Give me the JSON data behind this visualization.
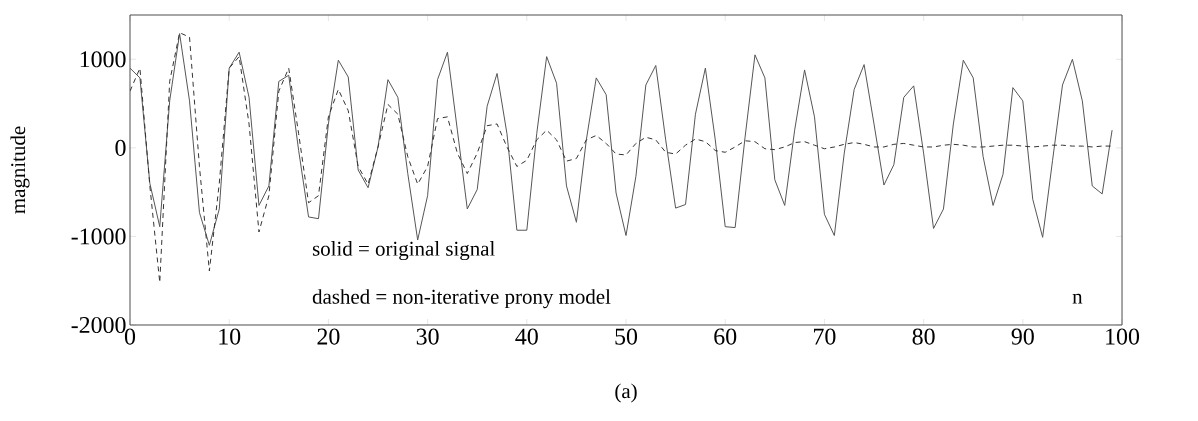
{
  "chart_data": {
    "type": "line",
    "xlabel": "n",
    "ylabel": "magnitude",
    "annotations": [
      "solid  = original signal",
      "dashed = non-iterative prony model",
      "(a)"
    ],
    "x": [
      0,
      1,
      2,
      3,
      4,
      5,
      6,
      7,
      8,
      9,
      10,
      11,
      12,
      13,
      14,
      15,
      16,
      17,
      18,
      19,
      20,
      21,
      22,
      23,
      24,
      25,
      26,
      27,
      28,
      29,
      30,
      31,
      32,
      33,
      34,
      35,
      36,
      37,
      38,
      39,
      40,
      41,
      42,
      43,
      44,
      45,
      46,
      47,
      48,
      49,
      50,
      51,
      52,
      53,
      54,
      55,
      56,
      57,
      58,
      59,
      60,
      61,
      62,
      63,
      64,
      65,
      66,
      67,
      68,
      69,
      70,
      71,
      72,
      73,
      74,
      75,
      76,
      77,
      78,
      79,
      80,
      81,
      82,
      83,
      84,
      85,
      86,
      87,
      88,
      89,
      90,
      91,
      92,
      93,
      94,
      95,
      96,
      97,
      98,
      99
    ],
    "series": [
      {
        "color": "#555555",
        "line_style": "solid",
        "values": [
          900,
          790,
          -400,
          -890,
          530,
          1290,
          530,
          -730,
          -1100,
          -690,
          900,
          1080,
          570,
          -650,
          -430,
          750,
          820,
          -30,
          -780,
          -800,
          270,
          990,
          800,
          -250,
          -450,
          10,
          770,
          570,
          -290,
          -1040,
          -540,
          770,
          1080,
          200,
          -690,
          -470,
          470,
          840,
          160,
          -930,
          -930,
          160,
          1030,
          730,
          -430,
          -840,
          90,
          790,
          600,
          -510,
          -990,
          -320,
          710,
          930,
          90,
          -680,
          -640,
          380,
          900,
          90,
          -890,
          -900,
          120,
          1050,
          790,
          -360,
          -650,
          200,
          880,
          350,
          -750,
          -990,
          -60,
          660,
          940,
          270,
          -420,
          -190,
          570,
          700,
          -60,
          -910,
          -690,
          270,
          990,
          790,
          -100,
          -650,
          -300,
          680,
          530,
          -580,
          -1010,
          -140,
          710,
          1000,
          530,
          -430,
          -520,
          200
        ]
      },
      {
        "color": "#333333",
        "line_style": "dashed",
        "values": [
          640,
          900,
          -430,
          -1520,
          750,
          1300,
          1250,
          -210,
          -1390,
          -400,
          900,
          1030,
          270,
          -950,
          -540,
          640,
          900,
          160,
          -620,
          -540,
          350,
          660,
          420,
          -210,
          -410,
          10,
          490,
          380,
          -100,
          -410,
          -210,
          330,
          350,
          -60,
          -290,
          -60,
          250,
          270,
          10,
          -210,
          -140,
          90,
          200,
          90,
          -150,
          -120,
          90,
          140,
          50,
          -70,
          -80,
          50,
          120,
          90,
          -50,
          -70,
          30,
          100,
          70,
          -30,
          -50,
          10,
          80,
          70,
          -10,
          -20,
          10,
          60,
          70,
          30,
          -10,
          10,
          40,
          60,
          40,
          10,
          10,
          40,
          50,
          30,
          10,
          10,
          30,
          40,
          30,
          10,
          10,
          20,
          30,
          30,
          20,
          10,
          20,
          30,
          30,
          20,
          20,
          10,
          20,
          20
        ]
      }
    ],
    "xlim": [
      0,
      100
    ],
    "ylim": [
      -2000,
      1500
    ],
    "xticks": [
      0,
      10,
      20,
      30,
      40,
      50,
      60,
      70,
      80,
      90,
      100
    ],
    "yticks": [
      -2000,
      -1000,
      0,
      1000
    ],
    "grid": false,
    "marker": "none"
  }
}
